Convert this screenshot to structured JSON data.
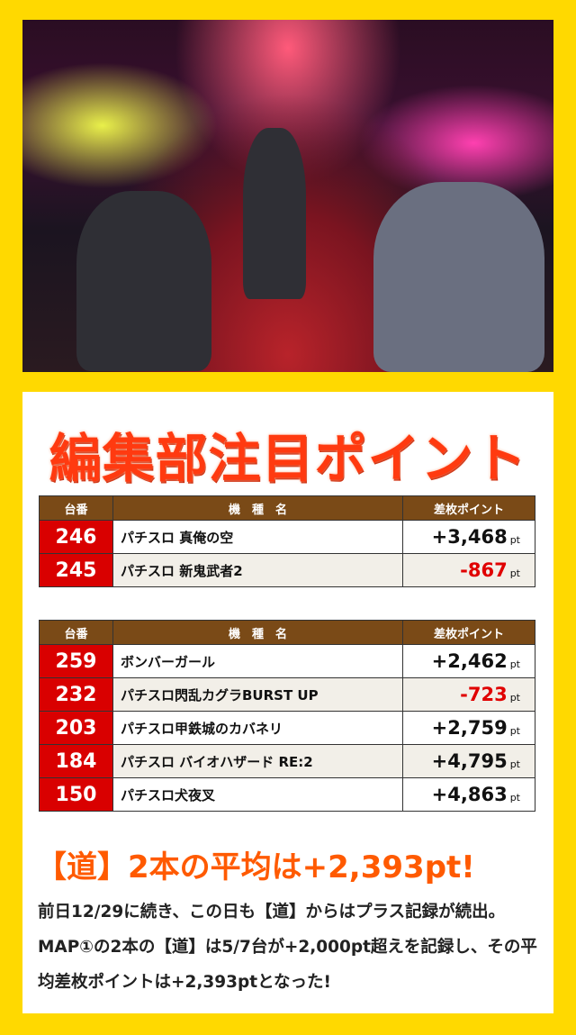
{
  "photo": {
    "description_icon": "casino-photo"
  },
  "title": "編集部注目ポイント",
  "table_headers": {
    "no": "台番",
    "name": "機　種　名",
    "points": "差枚ポイント"
  },
  "unit": "pt",
  "table1": [
    {
      "no": "246",
      "name": "パチスロ 真俺の空",
      "points": "+3,468",
      "negative": false
    },
    {
      "no": "245",
      "name": "パチスロ 新鬼武者2",
      "points": "-867",
      "negative": true
    }
  ],
  "table2": [
    {
      "no": "259",
      "name": "ボンバーガール",
      "points": "+2,462",
      "negative": false
    },
    {
      "no": "232",
      "name": "パチスロ閃乱カグラBURST UP",
      "points": "-723",
      "negative": true
    },
    {
      "no": "203",
      "name": "パチスロ甲鉄城のカバネリ",
      "points": "+2,759",
      "negative": false
    },
    {
      "no": "184",
      "name": "パチスロ バイオハザード RE:2",
      "points": "+4,795",
      "negative": false
    },
    {
      "no": "150",
      "name": "パチスロ犬夜叉",
      "points": "+4,863",
      "negative": false
    }
  ],
  "headline": "【道】2本の平均は+2,393pt!",
  "body": "前日12/29に続き、この日も【道】からはプラス記録が続出。MAP①の2本の【道】は5/7台が+2,000pt超えを記録し、その平均差枚ポイントは+2,393ptとなった!",
  "colors": {
    "background": "#ffd900",
    "header": "#7a4a17",
    "number_cell": "#d90000",
    "negative": "#e00000",
    "headline": "#ff5a00"
  }
}
